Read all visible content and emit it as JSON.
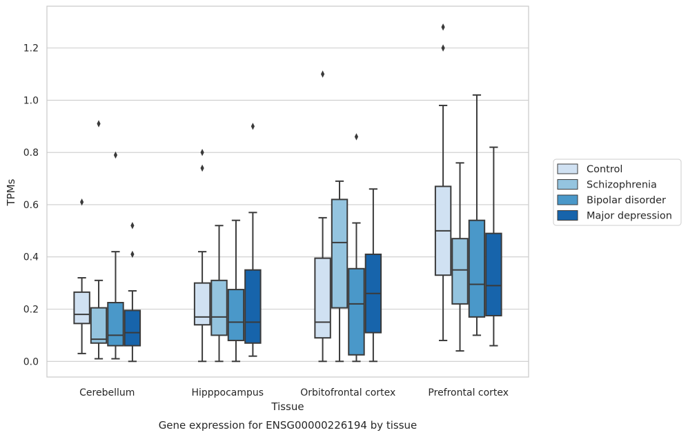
{
  "chart_data": {
    "type": "box",
    "caption": "Gene expression for ENSG00000226194 by tissue",
    "xlabel": "Tissue",
    "ylabel": "TPMs",
    "ylim": [
      -0.06,
      1.36
    ],
    "yticks": [
      "0.0",
      "0.2",
      "0.4",
      "0.6",
      "0.8",
      "1.0",
      "1.2"
    ],
    "grid": true,
    "legend_position": "right",
    "categories": [
      "Cerebellum",
      "Hipppocampus",
      "Orbitofrontal cortex",
      "Prefrontal cortex"
    ],
    "series": [
      {
        "name": "Control",
        "color": "#d0e1f2",
        "boxes": [
          {
            "whislo": 0.03,
            "q1": 0.145,
            "med": 0.18,
            "q3": 0.265,
            "whishi": 0.32,
            "fliers": [
              0.61
            ]
          },
          {
            "whislo": 0.0,
            "q1": 0.14,
            "med": 0.17,
            "q3": 0.3,
            "whishi": 0.42,
            "fliers": [
              0.74,
              0.8
            ]
          },
          {
            "whislo": 0.0,
            "q1": 0.09,
            "med": 0.15,
            "q3": 0.395,
            "whishi": 0.55,
            "fliers": [
              1.1
            ]
          },
          {
            "whislo": 0.08,
            "q1": 0.33,
            "med": 0.5,
            "q3": 0.67,
            "whishi": 0.98,
            "fliers": [
              1.2,
              1.28
            ]
          }
        ]
      },
      {
        "name": "Schizophrenia",
        "color": "#94c4df",
        "boxes": [
          {
            "whislo": 0.01,
            "q1": 0.07,
            "med": 0.085,
            "q3": 0.205,
            "whishi": 0.31,
            "fliers": [
              0.91
            ]
          },
          {
            "whislo": 0.0,
            "q1": 0.1,
            "med": 0.17,
            "q3": 0.31,
            "whishi": 0.52,
            "fliers": []
          },
          {
            "whislo": 0.0,
            "q1": 0.205,
            "med": 0.455,
            "q3": 0.62,
            "whishi": 0.69,
            "fliers": []
          },
          {
            "whislo": 0.04,
            "q1": 0.22,
            "med": 0.35,
            "q3": 0.47,
            "whishi": 0.76,
            "fliers": []
          }
        ]
      },
      {
        "name": "Bipolar disorder",
        "color": "#4a98c9",
        "boxes": [
          {
            "whislo": 0.01,
            "q1": 0.06,
            "med": 0.1,
            "q3": 0.225,
            "whishi": 0.42,
            "fliers": [
              0.79
            ]
          },
          {
            "whislo": 0.0,
            "q1": 0.08,
            "med": 0.15,
            "q3": 0.275,
            "whishi": 0.54,
            "fliers": []
          },
          {
            "whislo": 0.0,
            "q1": 0.025,
            "med": 0.22,
            "q3": 0.355,
            "whishi": 0.53,
            "fliers": [
              0.86
            ]
          },
          {
            "whislo": 0.1,
            "q1": 0.17,
            "med": 0.295,
            "q3": 0.54,
            "whishi": 1.02,
            "fliers": []
          }
        ]
      },
      {
        "name": "Major depression",
        "color": "#1764ab",
        "boxes": [
          {
            "whislo": 0.0,
            "q1": 0.06,
            "med": 0.11,
            "q3": 0.195,
            "whishi": 0.27,
            "fliers": [
              0.41,
              0.52
            ]
          },
          {
            "whislo": 0.02,
            "q1": 0.07,
            "med": 0.15,
            "q3": 0.35,
            "whishi": 0.57,
            "fliers": [
              0.9
            ]
          },
          {
            "whislo": 0.0,
            "q1": 0.11,
            "med": 0.26,
            "q3": 0.41,
            "whishi": 0.66,
            "fliers": []
          },
          {
            "whislo": 0.06,
            "q1": 0.175,
            "med": 0.29,
            "q3": 0.49,
            "whishi": 0.82,
            "fliers": []
          }
        ]
      }
    ]
  }
}
